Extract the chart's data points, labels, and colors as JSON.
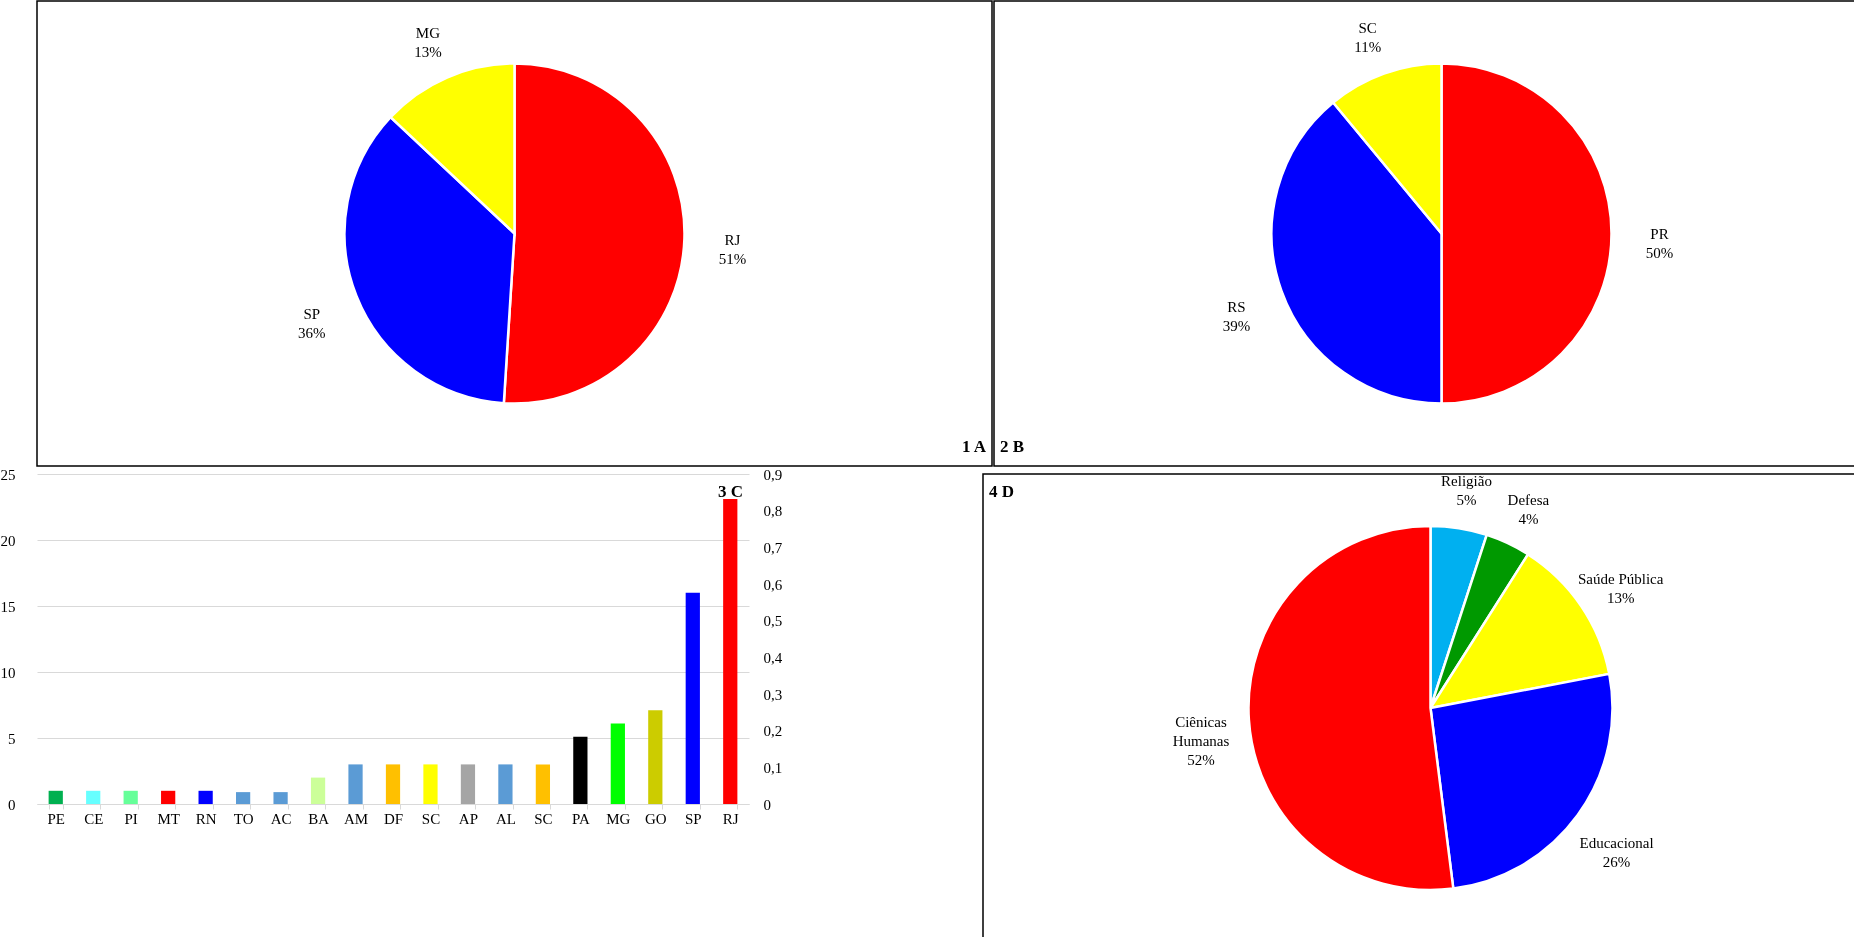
{
  "chart_data": [
    {
      "type": "pie",
      "categories": [
        "RJ",
        "SP",
        "MG"
      ],
      "values": [
        51,
        36,
        13
      ],
      "colors": [
        "#ff0000",
        "#0000ff",
        "#ffff00"
      ],
      "value_labels": [
        "51%",
        "36%",
        "13%"
      ],
      "annotations": [
        "1 A"
      ]
    },
    {
      "type": "pie",
      "categories": [
        "PR",
        "RS",
        "SC"
      ],
      "values": [
        50,
        39,
        11
      ],
      "colors": [
        "#ff0000",
        "#0000ff",
        "#ffff00"
      ],
      "value_labels": [
        "50%",
        "39%",
        "11%"
      ],
      "annotations": [
        "2 B"
      ]
    },
    {
      "type": "bar",
      "categories": [
        "PE",
        "CE",
        "PI",
        "MT",
        "RN",
        "TO",
        "AC",
        "BA",
        "AM",
        "DF",
        "SC",
        "AP",
        "AL",
        "SC",
        "PA",
        "MG",
        "GO",
        "SP",
        "RJ"
      ],
      "values": [
        1,
        1,
        1,
        1,
        1,
        0.9,
        0.9,
        2,
        3,
        3,
        3,
        3,
        3,
        3,
        5.1,
        6.1,
        7.1,
        16,
        23.1
      ],
      "colors": [
        "#00b050",
        "#66ffff",
        "#66ff99",
        "#ff0000",
        "#0000ff",
        "#5b9bd5",
        "#5b9bd5",
        "#ccff99",
        "#5b9bd5",
        "#ffc000",
        "#ffff00",
        "#a5a5a5",
        "#5b9bd5",
        "#ffc000",
        "#000000",
        "#00ff00",
        "#cccc00",
        "#0000ff",
        "#ff0000"
      ],
      "ylim": [
        0,
        25
      ],
      "yticks": [
        0,
        5,
        10,
        15,
        20,
        25
      ],
      "y2lim": [
        0,
        0.9
      ],
      "y2ticks": [
        0,
        {
          "value": 0.1,
          "label": "0,1"
        },
        {
          "value": 0.2,
          "label": "0,2"
        },
        {
          "value": 0.3,
          "label": "0,3"
        },
        {
          "value": 0.4,
          "label": "0,4"
        },
        {
          "value": 0.5,
          "label": "0,5"
        },
        {
          "value": 0.6,
          "label": "0,6"
        },
        {
          "value": 0.7,
          "label": "0,7"
        },
        {
          "value": 0.8,
          "label": "0,8"
        },
        {
          "value": 0.9,
          "label": "0,9"
        }
      ],
      "grid": "y",
      "annotations": [
        "3 C"
      ]
    },
    {
      "type": "pie",
      "categories": [
        "Religião",
        "Defesa",
        "Saúde Pública",
        "Educacional",
        "Ciênicas Humanas"
      ],
      "values": [
        5,
        4,
        13,
        26,
        52
      ],
      "colors": [
        "#00b0f0",
        "#009900",
        "#ffff00",
        "#0000ff",
        "#ff0000"
      ],
      "value_labels": [
        "5%",
        "4%",
        "13%",
        "26%",
        "52%"
      ],
      "annotations": [
        "4 D"
      ]
    }
  ]
}
